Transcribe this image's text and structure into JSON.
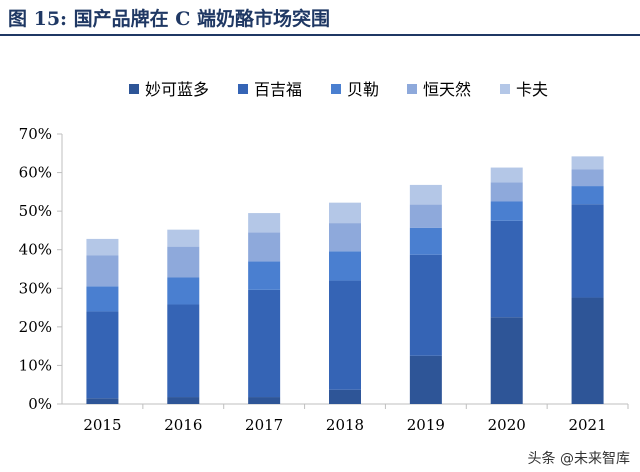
{
  "figure": {
    "title": "图 15:  国产品牌在 C 端奶酪市场突围"
  },
  "watermark": "头条 @未来智库",
  "colors": {
    "title": "#1f3864",
    "axis": "#bfbfbf",
    "tick_text": "#000000"
  },
  "chart_data": {
    "type": "bar",
    "stacked": true,
    "categories": [
      "2015",
      "2016",
      "2017",
      "2018",
      "2019",
      "2020",
      "2021"
    ],
    "yticks": [
      "0%",
      "10%",
      "20%",
      "30%",
      "40%",
      "50%",
      "60%",
      "70%"
    ],
    "ylim": [
      0,
      70
    ],
    "grid": false,
    "legend_position": "top",
    "series": [
      {
        "name": "妙可蓝多",
        "color": "#2e5597",
        "values": [
          1.5,
          1.8,
          1.8,
          3.7,
          12.5,
          22.5,
          27.6
        ]
      },
      {
        "name": "百吉福",
        "color": "#3564b5",
        "values": [
          22.5,
          24.0,
          27.8,
          28.3,
          26.2,
          25.0,
          24.2
        ]
      },
      {
        "name": "贝勒",
        "color": "#4a7fd0",
        "values": [
          6.5,
          7.0,
          7.4,
          7.6,
          7.0,
          5.0,
          4.7
        ]
      },
      {
        "name": "恒天然",
        "color": "#8ea9db",
        "values": [
          8.0,
          8.0,
          7.5,
          7.3,
          6.0,
          5.0,
          4.3
        ]
      },
      {
        "name": "卡夫",
        "color": "#b4c7e7",
        "values": [
          4.3,
          4.4,
          5.0,
          5.3,
          5.1,
          3.8,
          3.4
        ]
      }
    ]
  }
}
